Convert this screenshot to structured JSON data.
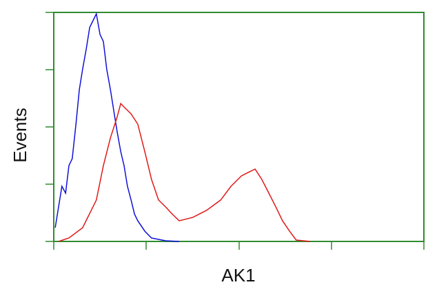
{
  "chart_data": {
    "type": "line",
    "x_label": "AK1",
    "y_label": "Events",
    "xlim": [
      0,
      100
    ],
    "ylim": [
      0,
      100
    ],
    "frame_color": "#2e8b2e",
    "series": [
      {
        "color": "#1010d8",
        "x": [
          0.4,
          1.3,
          2.2,
          3.2,
          4.1,
          5.0,
          6.0,
          6.9,
          7.8,
          8.8,
          9.7,
          10.6,
          11.5,
          12.5,
          13.4,
          14.3,
          15.3,
          16.2,
          17.1,
          18.1,
          19.0,
          19.9,
          20.9,
          21.8,
          22.7,
          24.6,
          26.4,
          30.2,
          33.9
        ],
        "values": [
          6.0,
          15.1,
          24.1,
          21.1,
          33.1,
          36.1,
          51.2,
          66.3,
          75.3,
          84.3,
          93.4,
          96.4,
          99.4,
          90.4,
          87.3,
          75.3,
          66.3,
          57.2,
          48.2,
          39.2,
          33.1,
          24.1,
          18.1,
          12.0,
          9.0,
          4.5,
          1.5,
          0.3,
          0
        ]
      },
      {
        "color": "#e01818",
        "x": [
          1.3,
          4.1,
          7.8,
          11.5,
          13.4,
          15.3,
          17.1,
          18.1,
          19.0,
          20.9,
          22.7,
          24.6,
          26.4,
          28.3,
          30.2,
          32.0,
          33.9,
          37.6,
          41.3,
          45.1,
          47.9,
          50.7,
          52.5,
          54.4,
          56.2,
          58.1,
          60.0,
          61.8,
          63.7,
          65.5,
          69.3
        ],
        "values": [
          0,
          1.5,
          6.0,
          18.1,
          33.1,
          45.2,
          54.2,
          60.2,
          58.7,
          55.7,
          51.2,
          39.2,
          27.1,
          18.1,
          15.1,
          12.0,
          9.0,
          10.5,
          13.6,
          18.1,
          24.1,
          28.6,
          30.1,
          31.6,
          27.1,
          21.1,
          15.1,
          9.0,
          4.5,
          0.6,
          0
        ]
      }
    ]
  }
}
